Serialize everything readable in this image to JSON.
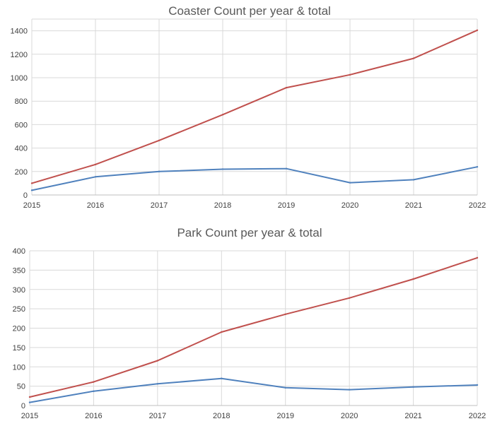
{
  "charts": [
    {
      "title": "Coaster Count per year & total",
      "chart_data": {
        "type": "line",
        "title": "Coaster Count per year & total",
        "x": [
          "2015",
          "2016",
          "2017",
          "2018",
          "2019",
          "2020",
          "2021",
          "2022"
        ],
        "series": [
          {
            "color": "#c0504d",
            "values": [
              100,
              260,
              465,
              685,
              915,
              1025,
              1165,
              1405
            ]
          },
          {
            "color": "#4f81bd",
            "values": [
              40,
              155,
              200,
              220,
              225,
              105,
              130,
              240
            ]
          }
        ],
        "ylim": [
          0,
          1500
        ],
        "yticks": [
          "0",
          "200",
          "400",
          "600",
          "800",
          "1000",
          "1200",
          "1400"
        ],
        "grid": true,
        "legend": "none"
      }
    },
    {
      "title": "Park Count per year & total",
      "chart_data": {
        "type": "line",
        "title": "Park Count per year & total",
        "x": [
          "2015",
          "2016",
          "2017",
          "2018",
          "2019",
          "2020",
          "2021",
          "2022"
        ],
        "series": [
          {
            "color": "#c0504d",
            "values": [
              22,
              61,
              116,
              190,
              236,
              278,
              327,
              382
            ]
          },
          {
            "color": "#4f81bd",
            "values": [
              8,
              37,
              56,
              70,
              46,
              41,
              48,
              53
            ]
          }
        ],
        "ylim": [
          0,
          400
        ],
        "yticks": [
          "0",
          "50",
          "100",
          "150",
          "200",
          "250",
          "300",
          "350",
          "400"
        ],
        "grid": true,
        "legend": "none"
      }
    }
  ]
}
